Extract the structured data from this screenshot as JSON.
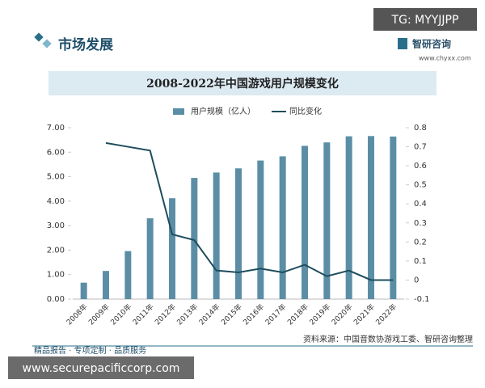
{
  "header": {
    "section": "市场发展",
    "tag": "TG: MYYJJPP",
    "brand": "智研咨询",
    "url": "www.chyxx.com"
  },
  "chart_data": {
    "type": "bar-line",
    "title": "2008-2022年中国游戏用户规模变化",
    "categories": [
      "2008年",
      "2009年",
      "2010年",
      "2011年",
      "2012年",
      "2013年",
      "2014年",
      "2015年",
      "2016年",
      "2017年",
      "2018年",
      "2019年",
      "2020年",
      "2021年",
      "2022年"
    ],
    "series": [
      {
        "name": "用户规模（亿人）",
        "color": "#5b8ea6",
        "kind": "bar",
        "values": [
          0.67,
          1.15,
          1.96,
          3.3,
          4.12,
          4.95,
          5.17,
          5.34,
          5.66,
          5.83,
          6.26,
          6.4,
          6.65,
          6.66,
          6.64
        ]
      },
      {
        "name": "同比变化",
        "color": "#1e4d5c",
        "kind": "line",
        "axis": "y2",
        "values": [
          null,
          0.72,
          0.7,
          0.68,
          0.24,
          0.21,
          0.05,
          0.04,
          0.06,
          0.04,
          0.08,
          0.02,
          0.05,
          0.0,
          0.0
        ]
      }
    ],
    "ylim": [
      0,
      7
    ],
    "yticks": [
      {
        "value": 0,
        "label": "0.00"
      },
      {
        "value": 1,
        "label": "1.00"
      },
      {
        "value": 2,
        "label": "2.00"
      },
      {
        "value": 3,
        "label": "3.00"
      },
      {
        "value": 4,
        "label": "4.00"
      },
      {
        "value": 5,
        "label": "5.00"
      },
      {
        "value": 6,
        "label": "6.00"
      },
      {
        "value": 7,
        "label": "7.00"
      }
    ],
    "y2lim": [
      -0.1,
      0.8
    ],
    "y2ticks": [
      -0.1,
      0,
      0.1,
      0.2,
      0.3,
      0.4,
      0.5,
      0.6,
      0.7,
      0.8
    ],
    "source": "资料来源：中国音数协游戏工委、智研咨询整理"
  },
  "footer": {
    "slogan": "精品报告 · 专项定制 · 品质服务",
    "watermark": "www.securepacificcorp.com"
  }
}
